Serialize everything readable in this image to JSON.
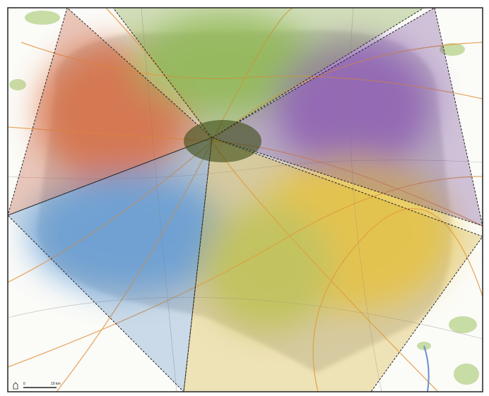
{
  "scale_bar": {
    "start": "0",
    "end": "10 km"
  }
}
